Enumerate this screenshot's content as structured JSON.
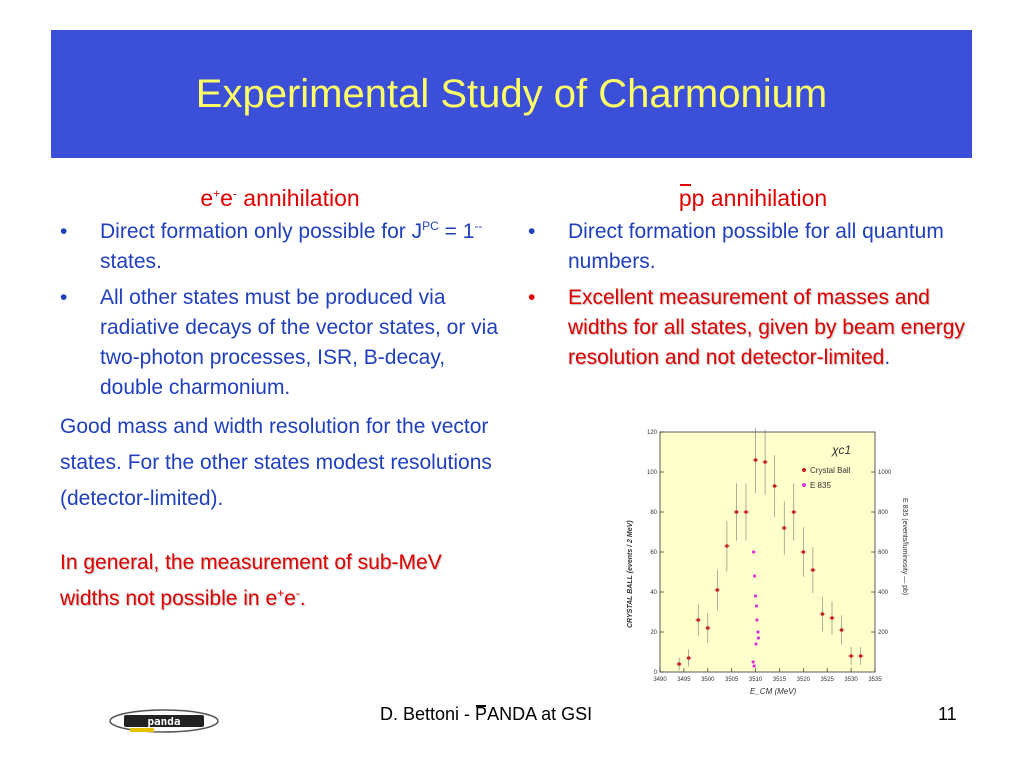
{
  "title": "Experimental Study of Charmonium",
  "left": {
    "heading_prefix": "e",
    "heading_sup1": "+",
    "heading_mid": "e",
    "heading_sup2": "-",
    "heading_suffix": " annihilation",
    "bullets": [
      {
        "text_a": "Direct formation only possible for J",
        "sup_a": "PC",
        "text_b": " = 1",
        "sup_b": "--",
        "text_c": " states."
      },
      {
        "text": "All other states must be produced via radiative decays of the vector states, or via two-photon processes, ISR, B-decay, double charmonium."
      }
    ],
    "paragraph": "Good mass and width resolution for the vector states. For the other states modest resolutions (detector-limited).",
    "red_a": "In general, the measurement of sub-MeV widths not possible in e",
    "red_sup1": "+",
    "red_mid": "e",
    "red_sup2": "-",
    "red_end": "."
  },
  "right": {
    "heading_p": "p",
    "heading_rest": "p annihilation",
    "bullets": [
      {
        "text": "Direct formation possible for all quantum numbers."
      },
      {
        "text": "Excellent measurement of masses and widths for all states, given by beam energy resolution and not detector-limited",
        "end": "."
      }
    ]
  },
  "bullet_char": "•",
  "plot": {
    "label": "χc1",
    "legend": [
      "Crystal Ball",
      "E 835"
    ],
    "xlabel": "E_CM (MeV)",
    "ylabel_left": "CRYSTAL BALL (events / 2 MeV)",
    "ylabel_right": "E 835 (events/luminosity — pb)",
    "xticks": [
      "3490",
      "3495",
      "3500",
      "3505",
      "3510",
      "3515",
      "3520",
      "3525",
      "3530",
      "3535"
    ],
    "yticks_left": [
      "0",
      "20",
      "40",
      "60",
      "80",
      "100",
      "120"
    ],
    "yticks_right": [
      "200",
      "400",
      "600",
      "800",
      "1000"
    ],
    "colors": {
      "crystal_ball": "#cc2020",
      "e835": "#dd33dd",
      "background": "#ffffcc"
    },
    "crystal_ball": [
      [
        3494,
        4
      ],
      [
        3496,
        7
      ],
      [
        3498,
        26
      ],
      [
        3500,
        22
      ],
      [
        3502,
        41
      ],
      [
        3504,
        63
      ],
      [
        3506,
        80
      ],
      [
        3508,
        80
      ],
      [
        3510,
        106
      ],
      [
        3512,
        105
      ],
      [
        3514,
        93
      ],
      [
        3516,
        72
      ],
      [
        3518,
        80
      ],
      [
        3520,
        60
      ],
      [
        3522,
        51
      ],
      [
        3524,
        29
      ],
      [
        3526,
        27
      ],
      [
        3528,
        21
      ],
      [
        3530,
        8
      ],
      [
        3532,
        8
      ]
    ],
    "e835": [
      [
        3509.6,
        60
      ],
      [
        3509.8,
        48
      ],
      [
        3510,
        38
      ],
      [
        3510.2,
        33
      ],
      [
        3510.3,
        26
      ],
      [
        3510.5,
        20
      ],
      [
        3510.6,
        17
      ],
      [
        3509.5,
        5
      ],
      [
        3509.7,
        3
      ],
      [
        3510.1,
        14
      ]
    ]
  },
  "footer": {
    "text_a": "D. Bettoni - ",
    "text_p": "P",
    "text_b": "ANDA at GSI",
    "page": "11",
    "logo_text": "panda"
  }
}
